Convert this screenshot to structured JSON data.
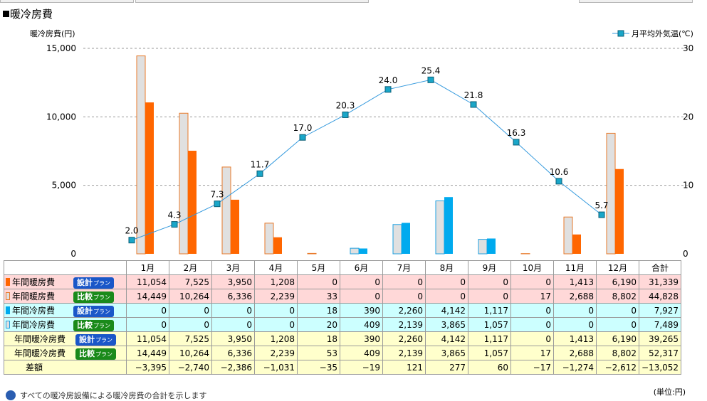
{
  "title": "暖冷房費",
  "chart_data": {
    "type": "bar",
    "title": "暖冷房費",
    "ylabel": "暖冷房費(円)",
    "y2label": "月平均外気温(℃)",
    "ylim": [
      0,
      15000
    ],
    "y2lim": [
      0,
      30
    ],
    "yticks": [
      "0",
      "5,000",
      "10,000",
      "15,000"
    ],
    "y2ticks": [
      "0",
      "10",
      "20",
      "30"
    ],
    "categories": [
      "1月",
      "2月",
      "3月",
      "4月",
      "5月",
      "6月",
      "7月",
      "8月",
      "9月",
      "10月",
      "11月",
      "12月"
    ],
    "series": [
      {
        "name": "年間暖房費 比較プラン",
        "kind": "bar",
        "values": [
          14449,
          10264,
          6336,
          2239,
          33,
          0,
          0,
          0,
          0,
          17,
          2688,
          8802
        ],
        "color": "#e0e0e0",
        "stroke": "#e87a2a"
      },
      {
        "name": "年間暖房費 設計プラン",
        "kind": "bar",
        "values": [
          11054,
          7525,
          3950,
          1208,
          0,
          0,
          0,
          0,
          0,
          0,
          1413,
          6190
        ],
        "color": "#ff6600"
      },
      {
        "name": "年間冷房費 比較プラン",
        "kind": "bar",
        "values": [
          0,
          0,
          0,
          0,
          20,
          409,
          2139,
          3865,
          1057,
          0,
          0,
          0
        ],
        "color": "#e0e0e0",
        "stroke": "#1ea0e0"
      },
      {
        "name": "年間冷房費 設計プラン",
        "kind": "bar",
        "values": [
          0,
          0,
          0,
          0,
          18,
          390,
          2260,
          4142,
          1117,
          0,
          0,
          0
        ],
        "color": "#00aaee"
      },
      {
        "name": "月平均外気温(℃)",
        "kind": "line",
        "axis": "right",
        "values": [
          2.0,
          4.3,
          7.3,
          11.7,
          17.0,
          20.3,
          24.0,
          25.4,
          21.8,
          16.3,
          10.6,
          5.7
        ],
        "labels": [
          "2.0",
          "4.3",
          "7.3",
          "11.7",
          "17.0",
          "20.3",
          "24.0",
          "25.4",
          "21.8",
          "16.3",
          "10.6",
          "5.7"
        ],
        "color": "#3399dd"
      }
    ],
    "legend": "top-right",
    "grid": true
  },
  "table": {
    "header": [
      "1月",
      "2月",
      "3月",
      "4月",
      "5月",
      "6月",
      "7月",
      "8月",
      "9月",
      "10月",
      "11月",
      "12月",
      "合計"
    ],
    "rows": [
      {
        "label": "年間暖房費",
        "plan": "設計",
        "plan_suffix": "プラン",
        "badge_color": "#1a57c8",
        "bg": "#ffd8d8",
        "swatch": "#ff6600",
        "swatch_border": "#ff6600",
        "values": [
          "11,054",
          "7,525",
          "3,950",
          "1,208",
          "0",
          "0",
          "0",
          "0",
          "0",
          "0",
          "1,413",
          "6,190",
          "31,339"
        ]
      },
      {
        "label": "年間暖房費",
        "plan": "比較",
        "plan_suffix": "プラン",
        "badge_color": "#1a8a1a",
        "bg": "#ffd8d8",
        "swatch": "#e0e0e0",
        "swatch_border": "#e87a2a",
        "values": [
          "14,449",
          "10,264",
          "6,336",
          "2,239",
          "33",
          "0",
          "0",
          "0",
          "0",
          "17",
          "2,688",
          "8,802",
          "44,828"
        ]
      },
      {
        "label": "年間冷房費",
        "plan": "設計",
        "plan_suffix": "プラン",
        "badge_color": "#1a57c8",
        "bg": "#ccffff",
        "swatch": "#00aaee",
        "swatch_border": "#00aaee",
        "values": [
          "0",
          "0",
          "0",
          "0",
          "18",
          "390",
          "2,260",
          "4,142",
          "1,117",
          "0",
          "0",
          "0",
          "7,927"
        ]
      },
      {
        "label": "年間冷房費",
        "plan": "比較",
        "plan_suffix": "プラン",
        "badge_color": "#1a8a1a",
        "bg": "#ccffff",
        "swatch": "#e0e0e0",
        "swatch_border": "#1ea0e0",
        "values": [
          "0",
          "0",
          "0",
          "0",
          "20",
          "409",
          "2,139",
          "3,865",
          "1,057",
          "0",
          "0",
          "0",
          "7,489"
        ]
      },
      {
        "label": "年間暖冷房費",
        "plan": "設計",
        "plan_suffix": "プラン",
        "badge_color": "#1a57c8",
        "bg": "#ffffcc",
        "swatch": "",
        "swatch_border": "",
        "values": [
          "11,054",
          "7,525",
          "3,950",
          "1,208",
          "18",
          "390",
          "2,260",
          "4,142",
          "1,117",
          "0",
          "1,413",
          "6,190",
          "39,265"
        ]
      },
      {
        "label": "年間暖冷房費",
        "plan": "比較",
        "plan_suffix": "プラン",
        "badge_color": "#1a8a1a",
        "bg": "#ffffcc",
        "swatch": "",
        "swatch_border": "",
        "values": [
          "14,449",
          "10,264",
          "6,336",
          "2,239",
          "53",
          "409",
          "2,139",
          "3,865",
          "1,057",
          "17",
          "2,688",
          "8,802",
          "52,317"
        ]
      },
      {
        "label": "差額",
        "plan": "",
        "plan_suffix": "",
        "badge_color": "",
        "bg": "#ffffcc",
        "swatch": "",
        "swatch_border": "",
        "values": [
          "−3,395",
          "−2,740",
          "−2,386",
          "−1,031",
          "−35",
          "−19",
          "121",
          "277",
          "60",
          "−17",
          "−1,274",
          "−2,612",
          "−13,052"
        ]
      }
    ]
  },
  "unit_note": "(単位:円)",
  "footnote": "すべての暖冷房設備による暖冷房費の合計を示します"
}
